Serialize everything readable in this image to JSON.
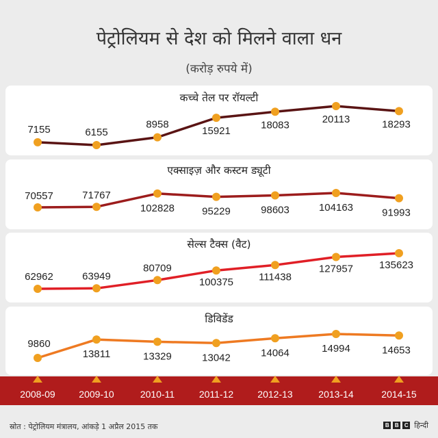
{
  "title": "पेट्रोलियम से देश को मिलने वाला धन",
  "subtitle": "(करोड़ रुपये में)",
  "colors": {
    "background": "#ececec",
    "panel": "#ffffff",
    "year_band": "#b01c1c",
    "marker": "#f0a020"
  },
  "chart_data": {
    "type": "line",
    "title": "पेट्रोलियम से देश को मिलने वाला धन",
    "subtitle": "(करोड़ रुपये में)",
    "x": [
      "2008-09",
      "2009-10",
      "2010-11",
      "2011-12",
      "2012-13",
      "2013-14",
      "2014-15"
    ],
    "series": [
      {
        "name": "कच्चे तेल पर रॉयल्टी",
        "color": "#5a1414",
        "values": [
          7155,
          6155,
          8958,
          15921,
          18083,
          20113,
          18293
        ]
      },
      {
        "name": "एक्साइज़ और कस्टम ड्यूटी",
        "color": "#9c1c1c",
        "values": [
          70557,
          71767,
          102828,
          95229,
          98603,
          104163,
          91993
        ]
      },
      {
        "name": "सेल्स टैक्स (वैट)",
        "color": "#e01f26",
        "values": [
          62962,
          63949,
          80709,
          100375,
          111438,
          127957,
          135623
        ]
      },
      {
        "name": "डिविडेंड",
        "color": "#ee7a22",
        "values": [
          9860,
          13811,
          13329,
          13042,
          14064,
          14994,
          14653
        ]
      }
    ]
  },
  "footer": {
    "source": "स्रोत : पेट्रोलियम मंत्रालय, आंकड़े 1  अप्रैल 2015 तक",
    "brand_letters": [
      "B",
      "B",
      "C"
    ],
    "brand_text": "हिन्दी"
  }
}
